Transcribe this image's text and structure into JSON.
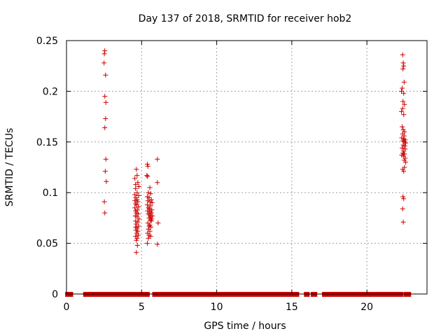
{
  "chart_data": {
    "type": "scatter",
    "title": "Day 137 of 2018, SRMTID for receiver hob2",
    "xlabel": "GPS time / hours",
    "ylabel": "SRMTID / TECUs",
    "xlim": [
      0,
      24
    ],
    "ylim": [
      0,
      0.25
    ],
    "x_ticks": [
      "0",
      "5",
      "10",
      "15",
      "20"
    ],
    "x_tick_values": [
      0,
      5,
      10,
      15,
      20
    ],
    "y_ticks": [
      "0",
      "0.05",
      "0.1",
      "0.15",
      "0.2",
      "0.25"
    ],
    "y_tick_values": [
      0,
      0.05,
      0.1,
      0.15,
      0.2,
      0.25
    ],
    "grid": true,
    "marker": "+",
    "marker_color": "#cc0000",
    "zero_segments": [
      [
        0.05,
        0.3
      ],
      [
        1.25,
        2.5
      ],
      [
        2.6,
        4.6
      ],
      [
        4.8,
        5.4
      ],
      [
        5.85,
        15.35
      ],
      [
        15.95,
        16.05
      ],
      [
        16.4,
        16.55
      ],
      [
        17.15,
        22.3
      ],
      [
        22.6,
        22.8
      ]
    ],
    "points": [
      [
        2.55,
        0.24
      ],
      [
        2.52,
        0.237
      ],
      [
        2.5,
        0.228
      ],
      [
        2.6,
        0.216
      ],
      [
        2.55,
        0.195
      ],
      [
        2.62,
        0.189
      ],
      [
        2.6,
        0.173
      ],
      [
        2.55,
        0.164
      ],
      [
        2.62,
        0.133
      ],
      [
        2.58,
        0.121
      ],
      [
        2.65,
        0.111
      ],
      [
        2.52,
        0.091
      ],
      [
        2.55,
        0.08
      ],
      [
        4.65,
        0.123
      ],
      [
        4.7,
        0.117
      ],
      [
        4.55,
        0.114
      ],
      [
        4.75,
        0.11
      ],
      [
        4.6,
        0.108
      ],
      [
        4.82,
        0.106
      ],
      [
        4.6,
        0.104
      ],
      [
        4.7,
        0.1
      ],
      [
        4.55,
        0.098
      ],
      [
        4.8,
        0.097
      ],
      [
        4.62,
        0.095
      ],
      [
        4.7,
        0.093
      ],
      [
        4.55,
        0.092
      ],
      [
        4.75,
        0.091
      ],
      [
        4.6,
        0.089
      ],
      [
        4.68,
        0.088
      ],
      [
        4.8,
        0.086
      ],
      [
        4.55,
        0.085
      ],
      [
        4.72,
        0.083
      ],
      [
        4.6,
        0.082
      ],
      [
        4.65,
        0.08
      ],
      [
        4.78,
        0.079
      ],
      [
        4.58,
        0.077
      ],
      [
        4.7,
        0.076
      ],
      [
        4.82,
        0.074
      ],
      [
        4.6,
        0.072
      ],
      [
        4.75,
        0.071
      ],
      [
        4.65,
        0.069
      ],
      [
        4.8,
        0.067
      ],
      [
        4.6,
        0.066
      ],
      [
        4.7,
        0.065
      ],
      [
        4.62,
        0.063
      ],
      [
        4.75,
        0.062
      ],
      [
        4.68,
        0.06
      ],
      [
        4.78,
        0.058
      ],
      [
        4.6,
        0.057
      ],
      [
        4.7,
        0.055
      ],
      [
        4.65,
        0.053
      ],
      [
        4.72,
        0.048
      ],
      [
        4.65,
        0.041
      ],
      [
        5.38,
        0.128
      ],
      [
        5.42,
        0.126
      ],
      [
        5.35,
        0.117
      ],
      [
        5.4,
        0.116
      ],
      [
        5.55,
        0.105
      ],
      [
        5.45,
        0.1
      ],
      [
        5.6,
        0.099
      ],
      [
        5.38,
        0.096
      ],
      [
        5.5,
        0.095
      ],
      [
        5.65,
        0.093
      ],
      [
        5.42,
        0.092
      ],
      [
        5.55,
        0.091
      ],
      [
        5.7,
        0.09
      ],
      [
        5.38,
        0.088
      ],
      [
        5.6,
        0.087
      ],
      [
        5.45,
        0.085
      ],
      [
        5.52,
        0.084
      ],
      [
        5.68,
        0.083
      ],
      [
        5.4,
        0.082
      ],
      [
        5.58,
        0.081
      ],
      [
        5.65,
        0.08
      ],
      [
        5.45,
        0.079
      ],
      [
        5.55,
        0.078
      ],
      [
        5.72,
        0.077
      ],
      [
        5.6,
        0.076
      ],
      [
        5.5,
        0.075
      ],
      [
        5.68,
        0.074
      ],
      [
        5.58,
        0.073
      ],
      [
        5.65,
        0.072
      ],
      [
        5.42,
        0.07
      ],
      [
        5.55,
        0.068
      ],
      [
        5.5,
        0.067
      ],
      [
        5.62,
        0.066
      ],
      [
        5.45,
        0.064
      ],
      [
        5.55,
        0.062
      ],
      [
        5.4,
        0.06
      ],
      [
        5.5,
        0.058
      ],
      [
        5.6,
        0.057
      ],
      [
        5.45,
        0.055
      ],
      [
        5.38,
        0.05
      ],
      [
        6.05,
        0.133
      ],
      [
        6.05,
        0.11
      ],
      [
        6.1,
        0.07
      ],
      [
        6.05,
        0.049
      ],
      [
        22.38,
        0.236
      ],
      [
        22.42,
        0.228
      ],
      [
        22.45,
        0.225
      ],
      [
        22.4,
        0.222
      ],
      [
        22.48,
        0.209
      ],
      [
        22.35,
        0.203
      ],
      [
        22.3,
        0.2
      ],
      [
        22.45,
        0.198
      ],
      [
        22.4,
        0.19
      ],
      [
        22.5,
        0.187
      ],
      [
        22.38,
        0.183
      ],
      [
        22.3,
        0.18
      ],
      [
        22.45,
        0.177
      ],
      [
        22.35,
        0.165
      ],
      [
        22.42,
        0.162
      ],
      [
        22.5,
        0.16
      ],
      [
        22.38,
        0.158
      ],
      [
        22.48,
        0.156
      ],
      [
        22.32,
        0.154
      ],
      [
        22.45,
        0.153
      ],
      [
        22.55,
        0.152
      ],
      [
        22.4,
        0.151
      ],
      [
        22.5,
        0.15
      ],
      [
        22.58,
        0.149
      ],
      [
        22.42,
        0.147
      ],
      [
        22.52,
        0.146
      ],
      [
        22.35,
        0.144
      ],
      [
        22.55,
        0.143
      ],
      [
        22.45,
        0.141
      ],
      [
        22.4,
        0.139
      ],
      [
        22.5,
        0.138
      ],
      [
        22.32,
        0.137
      ],
      [
        22.45,
        0.136
      ],
      [
        22.55,
        0.134
      ],
      [
        22.48,
        0.132
      ],
      [
        22.58,
        0.13
      ],
      [
        22.5,
        0.125
      ],
      [
        22.38,
        0.123
      ],
      [
        22.45,
        0.121
      ],
      [
        22.4,
        0.096
      ],
      [
        22.45,
        0.094
      ],
      [
        22.38,
        0.084
      ],
      [
        22.42,
        0.071
      ]
    ]
  }
}
